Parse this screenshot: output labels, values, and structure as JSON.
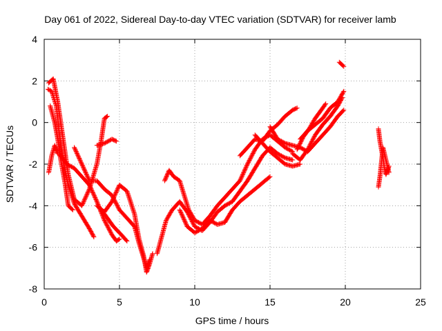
{
  "chart_data": {
    "type": "scatter",
    "title": "Day 061 of 2022, Sidereal Day-to-day VTEC variation (SDTVAR) for receiver lamb",
    "xlabel": "GPS time / hours",
    "ylabel": "SDTVAR / TECUs",
    "xlim": [
      0,
      25
    ],
    "ylim": [
      -8,
      4
    ],
    "xticks": [
      0,
      5,
      10,
      15,
      20,
      25
    ],
    "yticks": [
      -8,
      -6,
      -4,
      -2,
      0,
      2,
      4
    ],
    "grid": true,
    "marker": "+",
    "color": "#ff0000",
    "series": [
      {
        "points": [
          [
            0.25,
            1.6
          ],
          [
            0.5,
            1.5
          ],
          [
            0.8,
            0.8
          ],
          [
            1.0,
            -0.5
          ],
          [
            1.3,
            -2.0
          ],
          [
            1.6,
            -3.0
          ],
          [
            2.0,
            -3.9
          ],
          [
            2.5,
            -4.5
          ],
          [
            3.0,
            -5.1
          ],
          [
            3.3,
            -5.5
          ]
        ]
      },
      {
        "points": [
          [
            0.3,
            1.9
          ],
          [
            0.6,
            2.1
          ],
          [
            0.9,
            1.0
          ],
          [
            1.2,
            -0.5
          ],
          [
            1.6,
            -2.5
          ],
          [
            2.0,
            -3.7
          ],
          [
            2.5,
            -4.0
          ],
          [
            3.0,
            -3.2
          ],
          [
            3.5,
            -2.0
          ],
          [
            3.8,
            -0.8
          ],
          [
            4.0,
            0.2
          ],
          [
            4.2,
            0.3
          ]
        ]
      },
      {
        "points": [
          [
            0.4,
            0.8
          ],
          [
            0.7,
            0.0
          ],
          [
            0.9,
            -0.8
          ],
          [
            1.1,
            -1.8
          ],
          [
            1.4,
            -3.0
          ],
          [
            1.6,
            -4.0
          ],
          [
            1.9,
            -4.2
          ]
        ]
      },
      {
        "points": [
          [
            0.3,
            -2.4
          ],
          [
            0.5,
            -1.6
          ],
          [
            0.7,
            -1.1
          ],
          [
            0.9,
            -1.5
          ]
        ]
      },
      {
        "points": [
          [
            1.0,
            -1.5
          ],
          [
            1.5,
            -2.0
          ],
          [
            2.0,
            -2.2
          ],
          [
            2.5,
            -2.6
          ],
          [
            3.0,
            -3.0
          ],
          [
            3.5,
            -3.8
          ],
          [
            4.0,
            -4.7
          ],
          [
            4.5,
            -5.4
          ],
          [
            4.8,
            -5.7
          ],
          [
            5.0,
            -5.6
          ]
        ]
      },
      {
        "points": [
          [
            2.0,
            -1.2
          ],
          [
            2.5,
            -2.0
          ],
          [
            3.0,
            -2.8
          ],
          [
            3.5,
            -2.8
          ],
          [
            4.0,
            -3.2
          ],
          [
            4.5,
            -3.5
          ],
          [
            5.0,
            -4.2
          ],
          [
            5.5,
            -4.6
          ],
          [
            6.0,
            -5.0
          ],
          [
            6.3,
            -5.8
          ],
          [
            6.6,
            -6.5
          ],
          [
            6.8,
            -7.0
          ],
          [
            7.0,
            -6.6
          ]
        ]
      },
      {
        "points": [
          [
            3.5,
            -4.0
          ],
          [
            4.0,
            -4.3
          ],
          [
            4.5,
            -3.8
          ],
          [
            5.0,
            -3.0
          ],
          [
            5.5,
            -3.3
          ],
          [
            6.0,
            -4.4
          ],
          [
            6.3,
            -5.6
          ],
          [
            6.6,
            -6.4
          ],
          [
            6.8,
            -7.2
          ],
          [
            7.0,
            -6.8
          ],
          [
            7.2,
            -6.3
          ]
        ]
      },
      {
        "points": [
          [
            3.5,
            -1.1
          ],
          [
            4.0,
            -1.0
          ],
          [
            4.5,
            -0.8
          ],
          [
            4.8,
            -0.9
          ]
        ]
      },
      {
        "points": [
          [
            3.8,
            -4.2
          ],
          [
            4.2,
            -4.6
          ],
          [
            4.6,
            -5.0
          ],
          [
            5.0,
            -5.3
          ],
          [
            5.5,
            -5.7
          ]
        ]
      },
      {
        "points": [
          [
            7.5,
            -6.3
          ],
          [
            7.8,
            -5.5
          ],
          [
            8.1,
            -4.7
          ],
          [
            8.5,
            -4.2
          ],
          [
            9.0,
            -3.8
          ],
          [
            9.5,
            -4.3
          ],
          [
            10.0,
            -5.0
          ],
          [
            10.5,
            -5.2
          ],
          [
            11.0,
            -4.8
          ],
          [
            11.5,
            -4.3
          ],
          [
            12.0,
            -4.0
          ],
          [
            12.5,
            -3.8
          ],
          [
            13.0,
            -3.3
          ],
          [
            13.5,
            -2.8
          ],
          [
            14.0,
            -2.2
          ],
          [
            14.5,
            -1.6
          ],
          [
            15.0,
            -1.2
          ],
          [
            15.5,
            -1.5
          ],
          [
            16.0,
            -1.7
          ],
          [
            16.5,
            -1.8
          ]
        ]
      },
      {
        "points": [
          [
            8.0,
            -2.8
          ],
          [
            8.3,
            -2.3
          ],
          [
            8.6,
            -2.6
          ],
          [
            9.0,
            -2.8
          ],
          [
            9.3,
            -3.5
          ],
          [
            9.6,
            -4.2
          ],
          [
            10.0,
            -4.7
          ],
          [
            10.5,
            -4.9
          ],
          [
            11.0,
            -4.5
          ],
          [
            11.5,
            -4.0
          ],
          [
            12.0,
            -3.6
          ],
          [
            12.5,
            -3.2
          ],
          [
            13.0,
            -2.8
          ],
          [
            13.5,
            -2.0
          ],
          [
            14.0,
            -1.3
          ],
          [
            14.5,
            -0.8
          ],
          [
            15.0,
            -0.6
          ],
          [
            15.5,
            -0.9
          ],
          [
            16.0,
            -1.2
          ],
          [
            16.5,
            -1.4
          ]
        ]
      },
      {
        "points": [
          [
            9.0,
            -4.2
          ],
          [
            9.5,
            -5.0
          ],
          [
            10.0,
            -5.3
          ],
          [
            10.5,
            -5.1
          ],
          [
            11.0,
            -4.7
          ],
          [
            11.5,
            -4.9
          ],
          [
            12.0,
            -4.8
          ],
          [
            12.5,
            -4.2
          ],
          [
            13.0,
            -3.8
          ],
          [
            13.5,
            -3.5
          ],
          [
            14.0,
            -3.2
          ],
          [
            14.5,
            -2.9
          ],
          [
            15.0,
            -2.6
          ]
        ]
      },
      {
        "points": [
          [
            13.0,
            -1.6
          ],
          [
            13.5,
            -1.2
          ],
          [
            14.0,
            -0.8
          ],
          [
            14.5,
            -0.9
          ],
          [
            15.0,
            -0.4
          ],
          [
            15.5,
            -0.1
          ],
          [
            16.0,
            0.3
          ],
          [
            16.5,
            0.6
          ],
          [
            16.8,
            0.7
          ]
        ]
      },
      {
        "points": [
          [
            14.0,
            -0.6
          ],
          [
            14.5,
            -1.0
          ],
          [
            15.0,
            -1.4
          ],
          [
            15.5,
            -1.7
          ],
          [
            16.0,
            -2.0
          ],
          [
            16.5,
            -2.1
          ],
          [
            17.0,
            -2.0
          ]
        ]
      },
      {
        "points": [
          [
            15.0,
            -0.2
          ],
          [
            15.5,
            -0.8
          ],
          [
            16.0,
            -1.0
          ],
          [
            16.5,
            -1.1
          ],
          [
            17.0,
            -1.2
          ],
          [
            17.5,
            -1.4
          ],
          [
            18.0,
            -1.0
          ],
          [
            18.5,
            -0.6
          ],
          [
            19.0,
            -0.2
          ],
          [
            19.5,
            0.3
          ],
          [
            19.9,
            0.6
          ]
        ]
      },
      {
        "points": [
          [
            16.5,
            -1.5
          ],
          [
            17.0,
            -1.8
          ],
          [
            17.5,
            -1.3
          ],
          [
            18.0,
            -0.6
          ],
          [
            18.5,
            -0.1
          ],
          [
            19.0,
            0.3
          ],
          [
            19.5,
            0.8
          ],
          [
            19.8,
            1.2
          ]
        ]
      },
      {
        "points": [
          [
            17.0,
            -0.8
          ],
          [
            17.5,
            -0.4
          ],
          [
            18.0,
            -0.1
          ],
          [
            18.5,
            0.2
          ],
          [
            19.0,
            0.7
          ],
          [
            19.5,
            1.0
          ],
          [
            19.9,
            1.5
          ]
        ]
      },
      {
        "points": [
          [
            16.8,
            -1.3
          ],
          [
            17.2,
            -0.7
          ],
          [
            17.6,
            -0.3
          ],
          [
            18.0,
            0.2
          ],
          [
            18.4,
            0.6
          ],
          [
            18.7,
            0.9
          ]
        ]
      },
      {
        "points": [
          [
            19.6,
            2.9
          ],
          [
            19.75,
            2.8
          ],
          [
            19.9,
            2.7
          ]
        ]
      },
      {
        "points": [
          [
            22.2,
            -3.1
          ],
          [
            22.3,
            -2.6
          ],
          [
            22.4,
            -1.9
          ],
          [
            22.5,
            -1.2
          ],
          [
            22.6,
            -1.5
          ],
          [
            22.7,
            -1.8
          ],
          [
            22.8,
            -2.1
          ],
          [
            22.9,
            -2.4
          ]
        ]
      },
      {
        "points": [
          [
            22.2,
            -0.3
          ],
          [
            22.3,
            -0.9
          ],
          [
            22.4,
            -1.3
          ],
          [
            22.5,
            -1.7
          ],
          [
            22.6,
            -2.2
          ],
          [
            22.7,
            -2.5
          ],
          [
            22.9,
            -2.1
          ]
        ]
      }
    ]
  }
}
